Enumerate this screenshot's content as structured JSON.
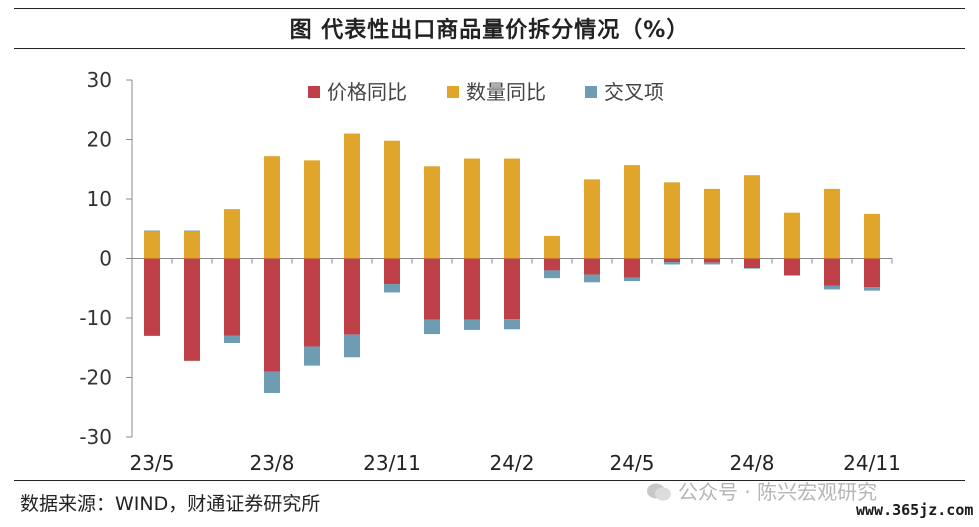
{
  "title": "图  代表性出口商品量价拆分情况（%）",
  "source": "数据来源：WIND，财通证券研究所",
  "watermark": "公众号 · 陈兴宏观研究",
  "watermark_url": "www.365jz.com",
  "colors": {
    "price": "#c0404a",
    "quantity": "#e0a62b",
    "cross": "#6d9cb3",
    "axis": "#888888"
  },
  "chart_data": {
    "type": "bar",
    "stacked": true,
    "categories": [
      "23/5",
      "23/6",
      "23/7",
      "23/8",
      "23/9",
      "23/10",
      "23/11",
      "23/12",
      "24/1",
      "24/2",
      "24/3",
      "24/4",
      "24/5",
      "24/6",
      "24/7",
      "24/8",
      "24/9",
      "24/10",
      "24/11"
    ],
    "x_tick_labels": [
      "23/5",
      "23/8",
      "23/11",
      "24/2",
      "24/5",
      "24/8",
      "24/11"
    ],
    "series": [
      {
        "name": "价格同比",
        "values": [
          -13,
          -17.2,
          -13,
          -19,
          -14.8,
          -12.8,
          -4.3,
          -10.3,
          -10.3,
          -10.2,
          -2,
          -2.7,
          -3.2,
          -0.6,
          -0.7,
          -1.6,
          -2.8,
          -4.6,
          -4.8
        ]
      },
      {
        "name": "数量同比",
        "values": [
          4.5,
          4.5,
          8.3,
          17.2,
          16.5,
          21,
          19.8,
          15.5,
          16.8,
          16.8,
          3.8,
          13.3,
          15.7,
          12.8,
          11.7,
          14,
          7.7,
          11.7,
          7.5
        ]
      },
      {
        "name": "交叉项",
        "values": [
          0.2,
          0.2,
          -1.2,
          -3.6,
          -3.2,
          -3.8,
          -1.4,
          -2.4,
          -1.7,
          -1.7,
          -1.3,
          -1.3,
          -0.6,
          -0.4,
          -0.3,
          -0.1,
          -0.1,
          -0.6,
          -0.6
        ]
      }
    ],
    "ylim": [
      -30,
      30
    ],
    "yticks": [
      -30,
      -20,
      -10,
      0,
      10,
      20,
      30
    ],
    "grid": false,
    "legend": "top"
  }
}
